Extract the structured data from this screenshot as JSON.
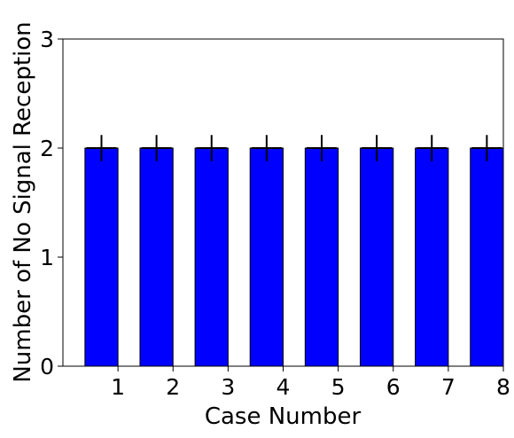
{
  "chart_data": {
    "type": "bar",
    "categories": [
      "1",
      "2",
      "3",
      "4",
      "5",
      "6",
      "7",
      "8"
    ],
    "values": [
      2,
      2,
      2,
      2,
      2,
      2,
      2,
      2
    ],
    "error": [
      0.12,
      0.12,
      0.12,
      0.12,
      0.12,
      0.12,
      0.12,
      0.12
    ],
    "xlabel": "Case Number",
    "ylabel": "Number of No Signal Reception",
    "ylim": [
      0,
      3
    ],
    "yticks": [
      "0",
      "1",
      "2",
      "3"
    ],
    "grid": false,
    "colors": {
      "bar": "#0000ff",
      "edge": "#000000",
      "errorbar": "#000000"
    }
  }
}
